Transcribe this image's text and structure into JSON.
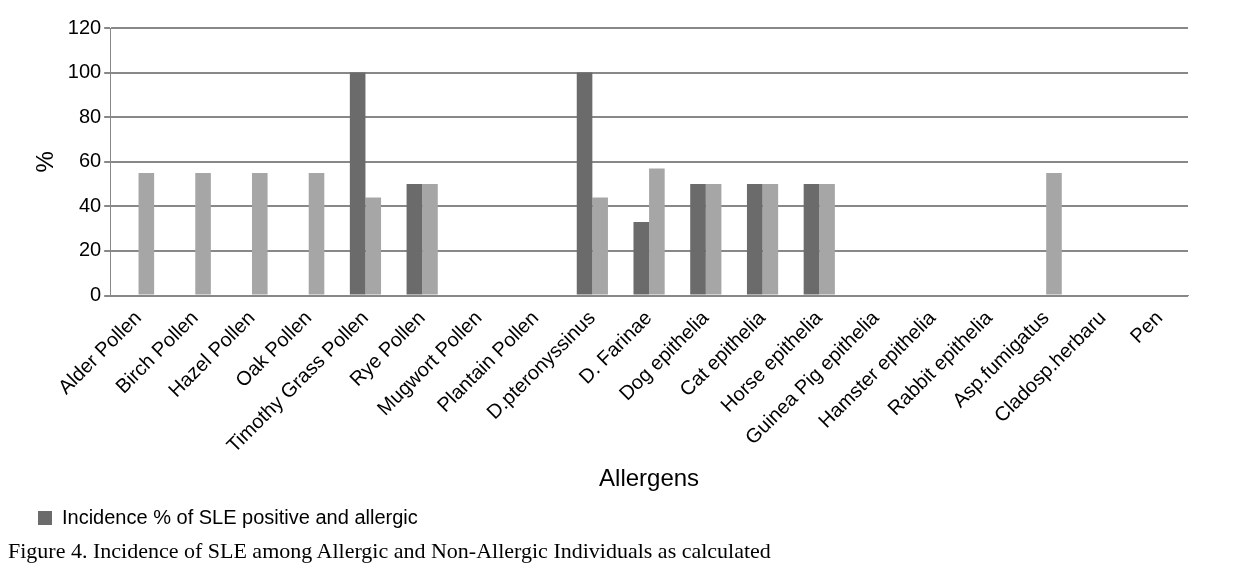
{
  "chart_data": {
    "type": "bar",
    "categories": [
      "Alder Pollen",
      "Birch Pollen",
      "Hazel Pollen",
      "Oak Pollen",
      "Timothy Grass Pollen",
      "Rye Pollen",
      "Mugwort Pollen",
      "Plantain Pollen",
      "D.pteronyssinus",
      "D. Farinae",
      "Dog epithelia",
      "Cat epithelia",
      "Horse epithelia",
      "Guinea Pig epithelia",
      "Hamster epithelia",
      "Rabbit epithelia",
      "Asp.fumigatus",
      "Cladosp.herbaru",
      "Pen"
    ],
    "series": [
      {
        "name": "Incidence % of SLE positive and allergic",
        "color": "#6b6b6b",
        "values": [
          0,
          0,
          0,
          0,
          100,
          50,
          0,
          0,
          100,
          33,
          50,
          50,
          50,
          0,
          0,
          0,
          0,
          0,
          0
        ]
      },
      {
        "color": "#a6a6a6",
        "values": [
          55,
          55,
          55,
          55,
          44,
          50,
          0,
          0,
          44,
          57,
          50,
          50,
          50,
          0,
          0,
          0,
          55,
          0,
          0
        ]
      }
    ],
    "xlabel": "Allergens",
    "ylabel": "%",
    "ylim": [
      0,
      120
    ],
    "yticks": [
      0,
      20,
      40,
      60,
      80,
      100,
      120
    ],
    "grid": "y",
    "legend": "bottom left",
    "annotations": [
      "Figure 4. Incidence of SLE among Allergic and Non-Allergic Individuals as calculated"
    ]
  }
}
